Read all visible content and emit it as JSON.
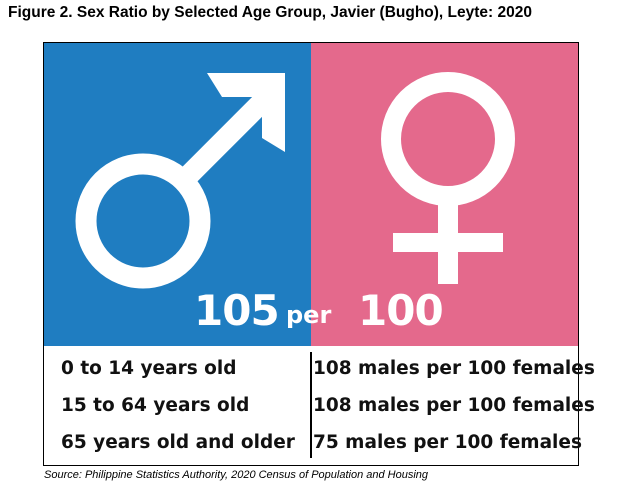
{
  "title": "Figure 2. Sex Ratio by Selected Age Group, Javier (Bugho), Leyte: 2020",
  "colors": {
    "male_panel": "#1f7dc1",
    "female_panel": "#e4698c",
    "symbol": "#ffffff",
    "text": "#111111"
  },
  "icons": {
    "male": "male-symbol-icon",
    "female": "female-symbol-icon"
  },
  "ratio": {
    "males": "105",
    "per": "per",
    "females": "100"
  },
  "rows": [
    {
      "age_group": "0 to 14 years old",
      "value": "108 males per 100 females"
    },
    {
      "age_group": "15 to 64 years old",
      "value": "108 males per 100 females"
    },
    {
      "age_group": "65 years old and older",
      "value": "75 males per 100 females"
    }
  ],
  "source": "Source: Philippine Statistics Authority, 2020 Census of Population and Housing"
}
